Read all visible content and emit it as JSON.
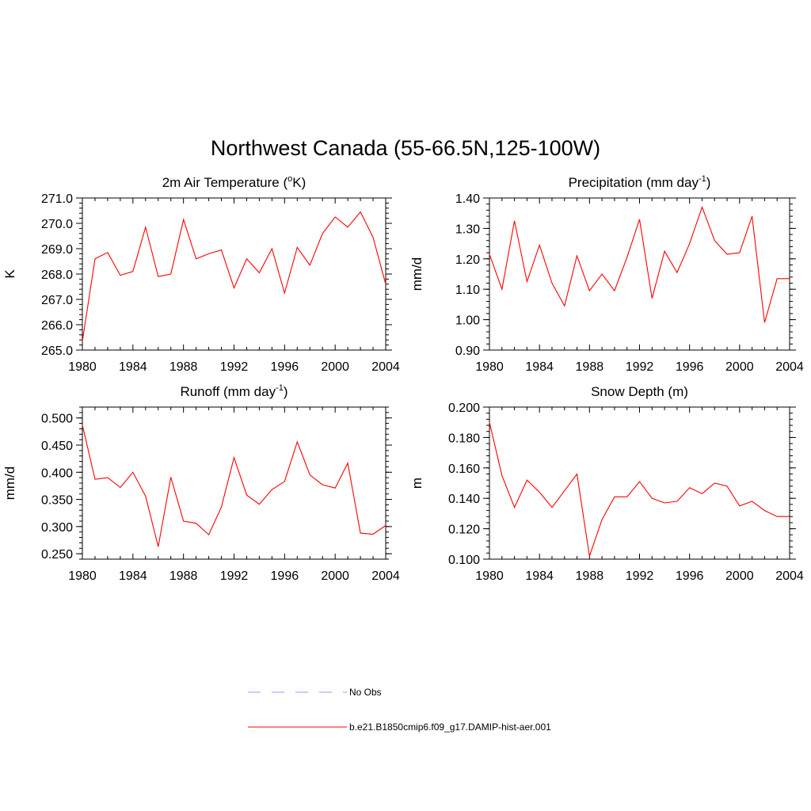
{
  "page": {
    "title": "Northwest Canada (55-66.5N,125-100W)"
  },
  "chart_data": [
    {
      "type": "line",
      "title": "2m Air Temperature (°K)",
      "title_base": "2m Air Temperature (",
      "title_sup": "o",
      "title_tail": "K)",
      "ylabel": "K",
      "xlabel": "",
      "xlim": [
        1980,
        2004
      ],
      "ylim": [
        265.0,
        271.0
      ],
      "x_ticks": [
        "1980",
        "1984",
        "1988",
        "1992",
        "1996",
        "2000",
        "2004"
      ],
      "y_ticks": [
        "265.0",
        "266.0",
        "267.0",
        "268.0",
        "269.0",
        "270.0",
        "271.0"
      ],
      "grid": false,
      "series": [
        {
          "name": "b.e21.B1850cmip6.f09_g17.DAMIP-hist-aer.001",
          "color": "#ff0000",
          "x": [
            1980,
            1981,
            1982,
            1983,
            1984,
            1985,
            1986,
            1987,
            1988,
            1989,
            1990,
            1991,
            1992,
            1993,
            1994,
            1995,
            1996,
            1997,
            1998,
            1999,
            2000,
            2001,
            2002,
            2003,
            2004
          ],
          "y": [
            265.35,
            268.6,
            268.85,
            267.95,
            268.1,
            269.85,
            267.9,
            268.0,
            270.15,
            268.6,
            268.8,
            268.95,
            267.45,
            268.6,
            268.05,
            269.0,
            267.25,
            269.05,
            268.35,
            269.6,
            270.25,
            269.85,
            270.45,
            269.45,
            267.6
          ]
        }
      ]
    },
    {
      "type": "line",
      "title": "Precipitation (mm day-1)",
      "title_base": "Precipitation (mm day",
      "title_sup": "-1",
      "title_tail": ")",
      "ylabel": "mm/d",
      "xlabel": "",
      "xlim": [
        1980,
        2004
      ],
      "ylim": [
        0.9,
        1.4
      ],
      "x_ticks": [
        "1980",
        "1984",
        "1988",
        "1992",
        "1996",
        "2000",
        "2004"
      ],
      "y_ticks": [
        "0.90",
        "1.00",
        "1.10",
        "1.20",
        "1.30",
        "1.40"
      ],
      "grid": false,
      "series": [
        {
          "name": "b.e21.B1850cmip6.f09_g17.DAMIP-hist-aer.001",
          "color": "#ff0000",
          "x": [
            1980,
            1981,
            1982,
            1983,
            1984,
            1985,
            1986,
            1987,
            1988,
            1989,
            1990,
            1991,
            1992,
            1993,
            1994,
            1995,
            1996,
            1997,
            1998,
            1999,
            2000,
            2001,
            2002,
            2003,
            2004
          ],
          "y": [
            1.215,
            1.1,
            1.325,
            1.125,
            1.245,
            1.12,
            1.045,
            1.21,
            1.095,
            1.15,
            1.095,
            1.205,
            1.33,
            1.07,
            1.225,
            1.155,
            1.25,
            1.37,
            1.26,
            1.215,
            1.22,
            1.34,
            0.99,
            1.135,
            1.135
          ]
        }
      ]
    },
    {
      "type": "line",
      "title": "Runoff (mm day-1)",
      "title_base": "Runoff (mm day",
      "title_sup": "-1",
      "title_tail": ")",
      "ylabel": "mm/d",
      "xlabel": "",
      "xlim": [
        1980,
        2004
      ],
      "ylim": [
        0.24,
        0.52
      ],
      "x_ticks": [
        "1980",
        "1984",
        "1988",
        "1992",
        "1996",
        "2000",
        "2004"
      ],
      "y_ticks": [
        "0.250",
        "0.300",
        "0.350",
        "0.400",
        "0.450",
        "0.500"
      ],
      "grid": false,
      "series": [
        {
          "name": "b.e21.B1850cmip6.f09_g17.DAMIP-hist-aer.001",
          "color": "#ff0000",
          "x": [
            1980,
            1981,
            1982,
            1983,
            1984,
            1985,
            1986,
            1987,
            1988,
            1989,
            1990,
            1991,
            1992,
            1993,
            1994,
            1995,
            1996,
            1997,
            1998,
            1999,
            2000,
            2001,
            2002,
            2003,
            2004
          ],
          "y": [
            0.487,
            0.387,
            0.39,
            0.372,
            0.4,
            0.356,
            0.263,
            0.391,
            0.31,
            0.306,
            0.285,
            0.336,
            0.427,
            0.358,
            0.341,
            0.368,
            0.383,
            0.456,
            0.395,
            0.377,
            0.371,
            0.417,
            0.288,
            0.286,
            0.302
          ]
        }
      ]
    },
    {
      "type": "line",
      "title": "Snow Depth (m)",
      "title_base": "Snow Depth (m)",
      "title_sup": "",
      "title_tail": "",
      "ylabel": "m",
      "xlabel": "",
      "xlim": [
        1980,
        2004
      ],
      "ylim": [
        0.1,
        0.2
      ],
      "x_ticks": [
        "1980",
        "1984",
        "1988",
        "1992",
        "1996",
        "2000",
        "2004"
      ],
      "y_ticks": [
        "0.100",
        "0.120",
        "0.140",
        "0.160",
        "0.180",
        "0.200"
      ],
      "grid": false,
      "series": [
        {
          "name": "b.e21.B1850cmip6.f09_g17.DAMIP-hist-aer.001",
          "color": "#ff0000",
          "x": [
            1980,
            1981,
            1982,
            1983,
            1984,
            1985,
            1986,
            1987,
            1988,
            1989,
            1990,
            1991,
            1992,
            1993,
            1994,
            1995,
            1996,
            1997,
            1998,
            1999,
            2000,
            2001,
            2002,
            2003,
            2004
          ],
          "y": [
            0.19,
            0.155,
            0.134,
            0.152,
            0.144,
            0.134,
            0.145,
            0.156,
            0.102,
            0.126,
            0.141,
            0.141,
            0.151,
            0.14,
            0.137,
            0.138,
            0.147,
            0.143,
            0.15,
            0.148,
            0.135,
            0.138,
            0.132,
            0.128,
            0.128
          ]
        }
      ]
    }
  ],
  "legend": {
    "placement": "bottom-center",
    "entries": [
      {
        "label": "No Obs",
        "color": "#9999ff",
        "style": "dashed"
      },
      {
        "label": "b.e21.B1850cmip6.f09_g17.DAMIP-hist-aer.001",
        "color": "#ff0000",
        "style": "solid"
      }
    ]
  }
}
